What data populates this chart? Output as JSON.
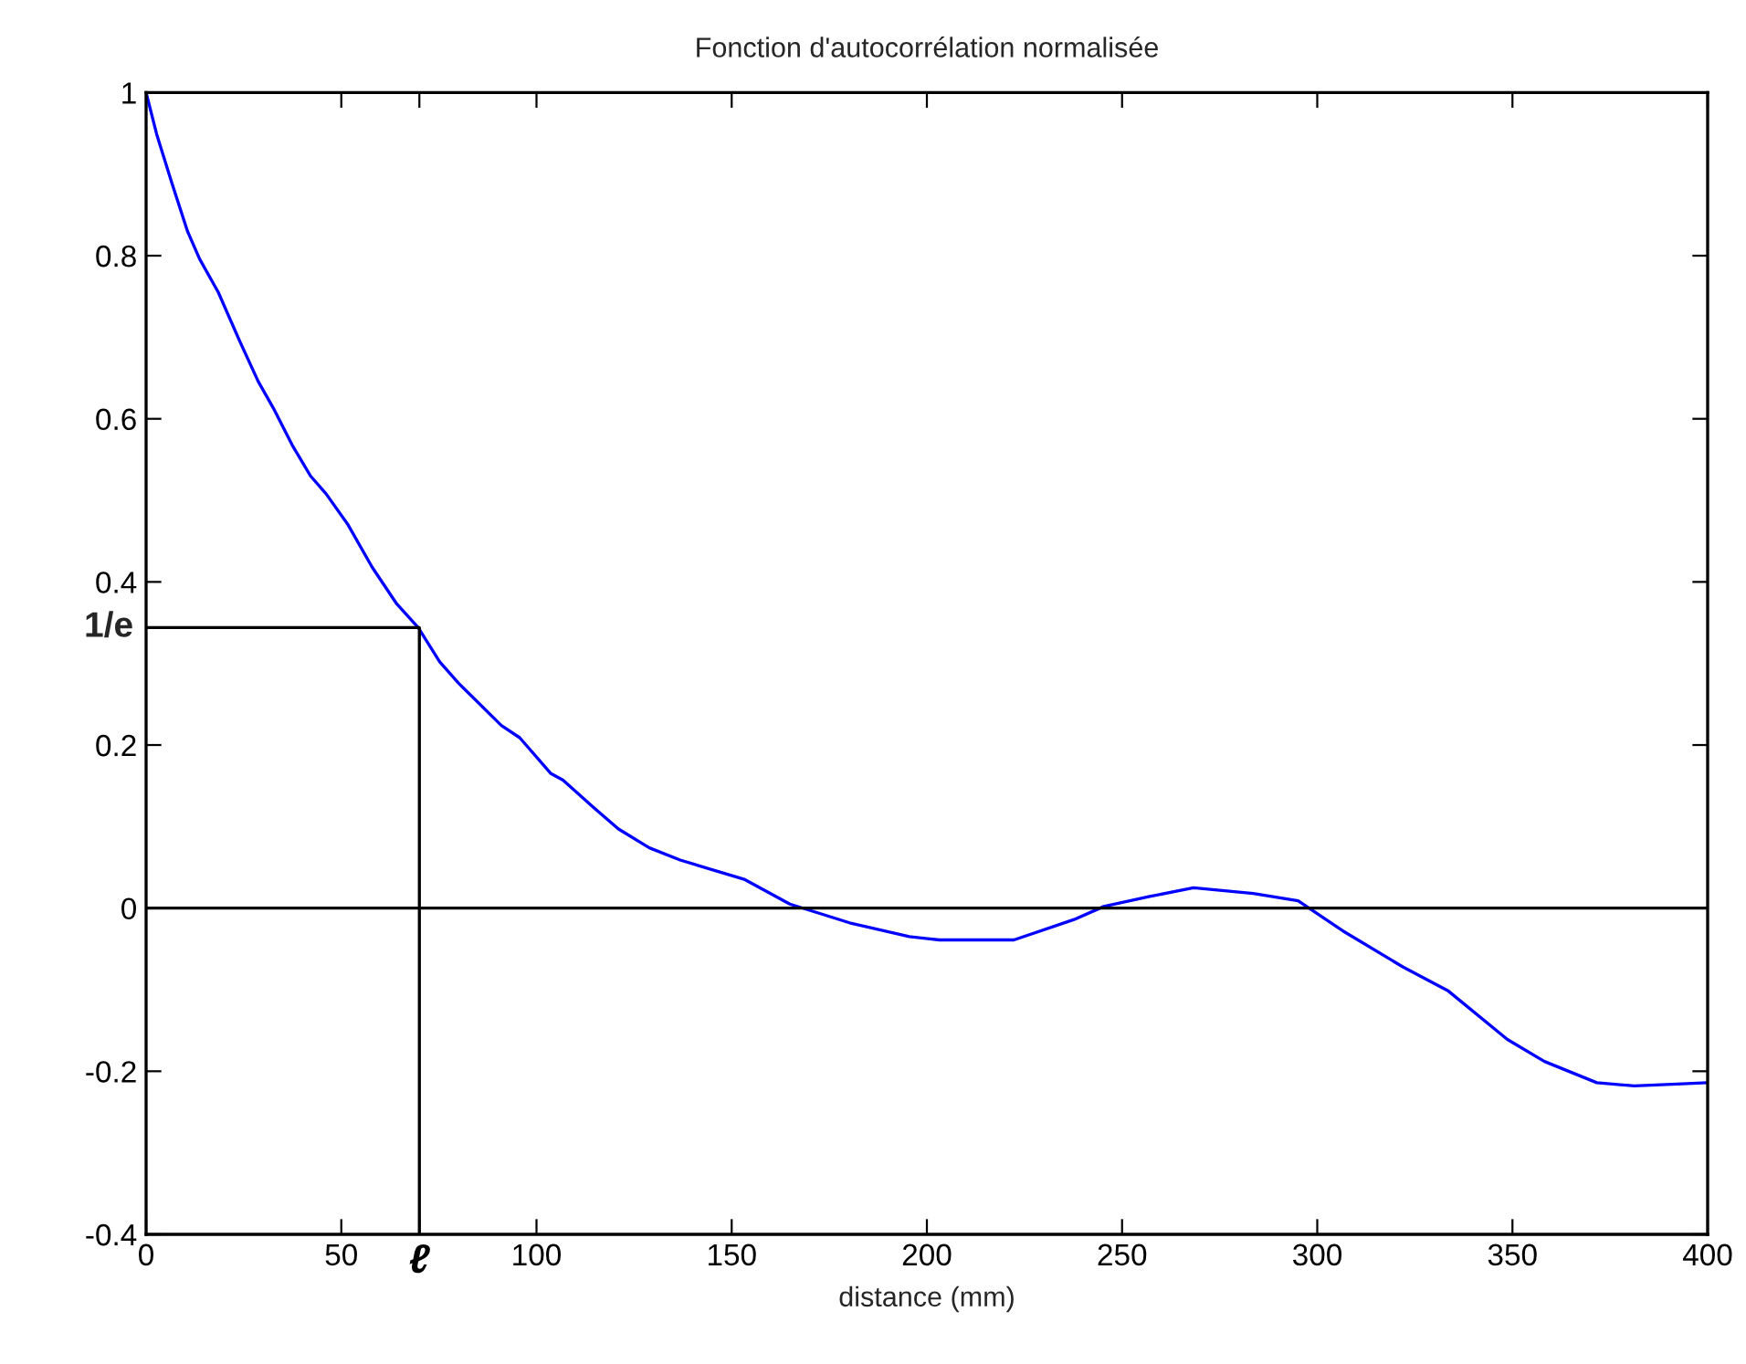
{
  "chart_data": {
    "type": "line",
    "title": "Fonction d'autocorrélation normalisée",
    "xlabel": "distance (mm)",
    "series": [
      {
        "color": "#0000ff",
        "x": [
          0,
          2.7,
          6.6,
          10.6,
          13.7,
          18.5,
          24.0,
          28.7,
          32.6,
          37.4,
          42.1,
          46.1,
          51.6,
          57.9,
          64.2,
          69.7,
          75.2,
          80.0,
          91.0,
          95.7,
          103.7,
          106.8,
          114.7,
          121.0,
          128.9,
          136.8,
          153.4,
          164.9,
          180.2,
          195.5,
          203.2,
          222.3,
          237.7,
          245.3,
          256.8,
          268.3,
          283.6,
          295.1,
          306.6,
          321.9,
          333.4,
          348.7,
          358.2,
          371.6,
          381.2,
          390.8,
          400
        ],
        "values": [
          1.0,
          0.949,
          0.889,
          0.83,
          0.796,
          0.755,
          0.695,
          0.646,
          0.613,
          0.568,
          0.53,
          0.508,
          0.471,
          0.418,
          0.373,
          0.344,
          0.302,
          0.276,
          0.224,
          0.209,
          0.165,
          0.157,
          0.123,
          0.097,
          0.074,
          0.059,
          0.035,
          0.005,
          -0.018,
          -0.035,
          -0.039,
          -0.039,
          -0.014,
          0.002,
          0.014,
          0.025,
          0.018,
          0.009,
          -0.028,
          -0.072,
          -0.101,
          -0.161,
          -0.188,
          -0.214,
          -0.218,
          -0.216,
          -0.214
        ]
      },
      {
        "color": "#000000",
        "x": [
          0,
          70,
          70
        ],
        "values": [
          0.344,
          0.344,
          -0.4
        ]
      }
    ],
    "ref_lines": [
      {
        "axis": "y",
        "value": 0,
        "color": "#000000"
      }
    ],
    "xlim": [
      0,
      400
    ],
    "ylim": [
      -0.4,
      1
    ],
    "xticks": [
      0,
      50,
      {
        "value": 70,
        "label": "ℓ"
      },
      100,
      150,
      200,
      250,
      300,
      350,
      400
    ],
    "yticks": [
      -0.4,
      -0.2,
      0,
      0.2,
      0.4,
      0.6,
      0.8,
      1
    ],
    "annotations": [
      {
        "text": "1/e",
        "x": 0,
        "y": 0.344
      }
    ],
    "grid": false,
    "legend": false
  }
}
